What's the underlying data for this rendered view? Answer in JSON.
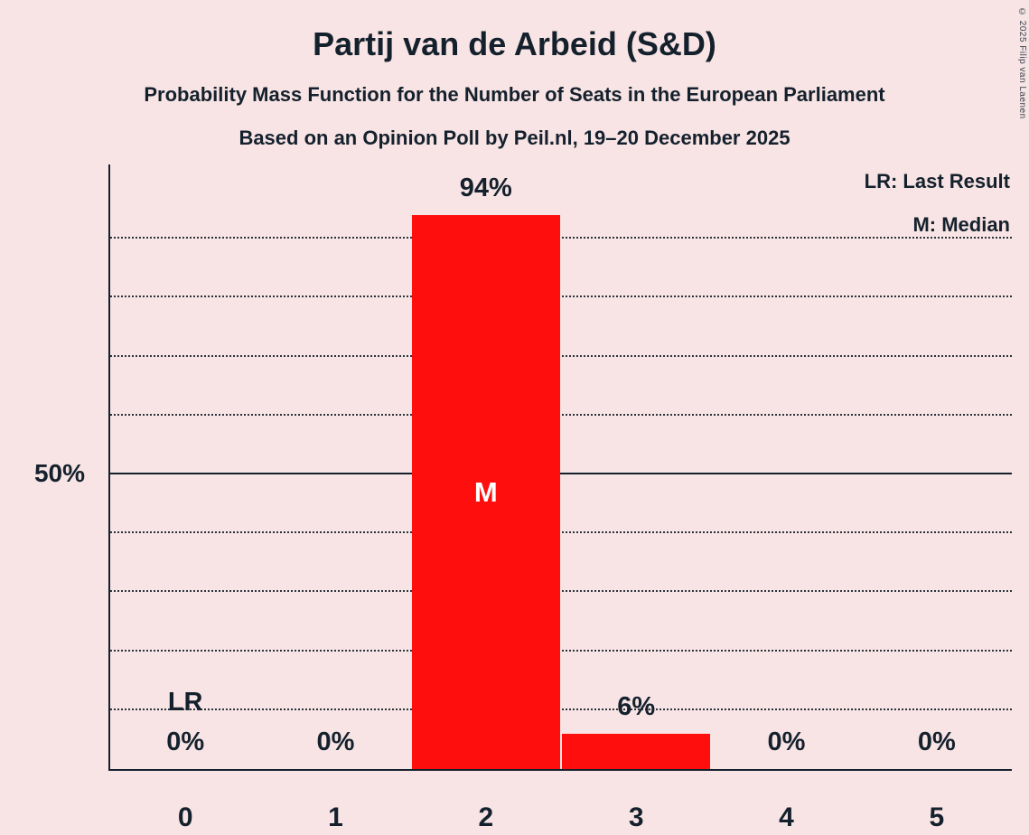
{
  "page": {
    "background_color": "#F8E4E4",
    "text_color": "#14212D"
  },
  "header": {
    "title": "Partij van de Arbeid (S&D)",
    "subtitle1": "Probability Mass Function for the Number of Seats in the European Parliament",
    "subtitle2": "Based on an Opinion Poll by Peil.nl, 19–20 December 2025"
  },
  "legend": {
    "last_result": "LR: Last Result",
    "median": "M: Median"
  },
  "copyright": "© 2025 Filip van Laenen",
  "chart_data": {
    "type": "bar",
    "title": "Partij van de Arbeid (S&D)",
    "categories": [
      "0",
      "1",
      "2",
      "3",
      "4",
      "5"
    ],
    "values": [
      0,
      0,
      94,
      6,
      0,
      0
    ],
    "value_labels": [
      "0%",
      "0%",
      "94%",
      "6%",
      "0%",
      "0%"
    ],
    "bar_color": "#FF0E0E",
    "ylim": [
      0,
      102.5
    ],
    "gridline_step": 10,
    "solid_gridline_value": 50,
    "y_axis_tick": {
      "value": 50,
      "label": "50%"
    },
    "legend_position": "top-right",
    "grid": true,
    "annotations": {
      "median_category_index": 2,
      "median_label": "M",
      "last_result_category_index": 0,
      "last_result_label": "LR"
    }
  }
}
